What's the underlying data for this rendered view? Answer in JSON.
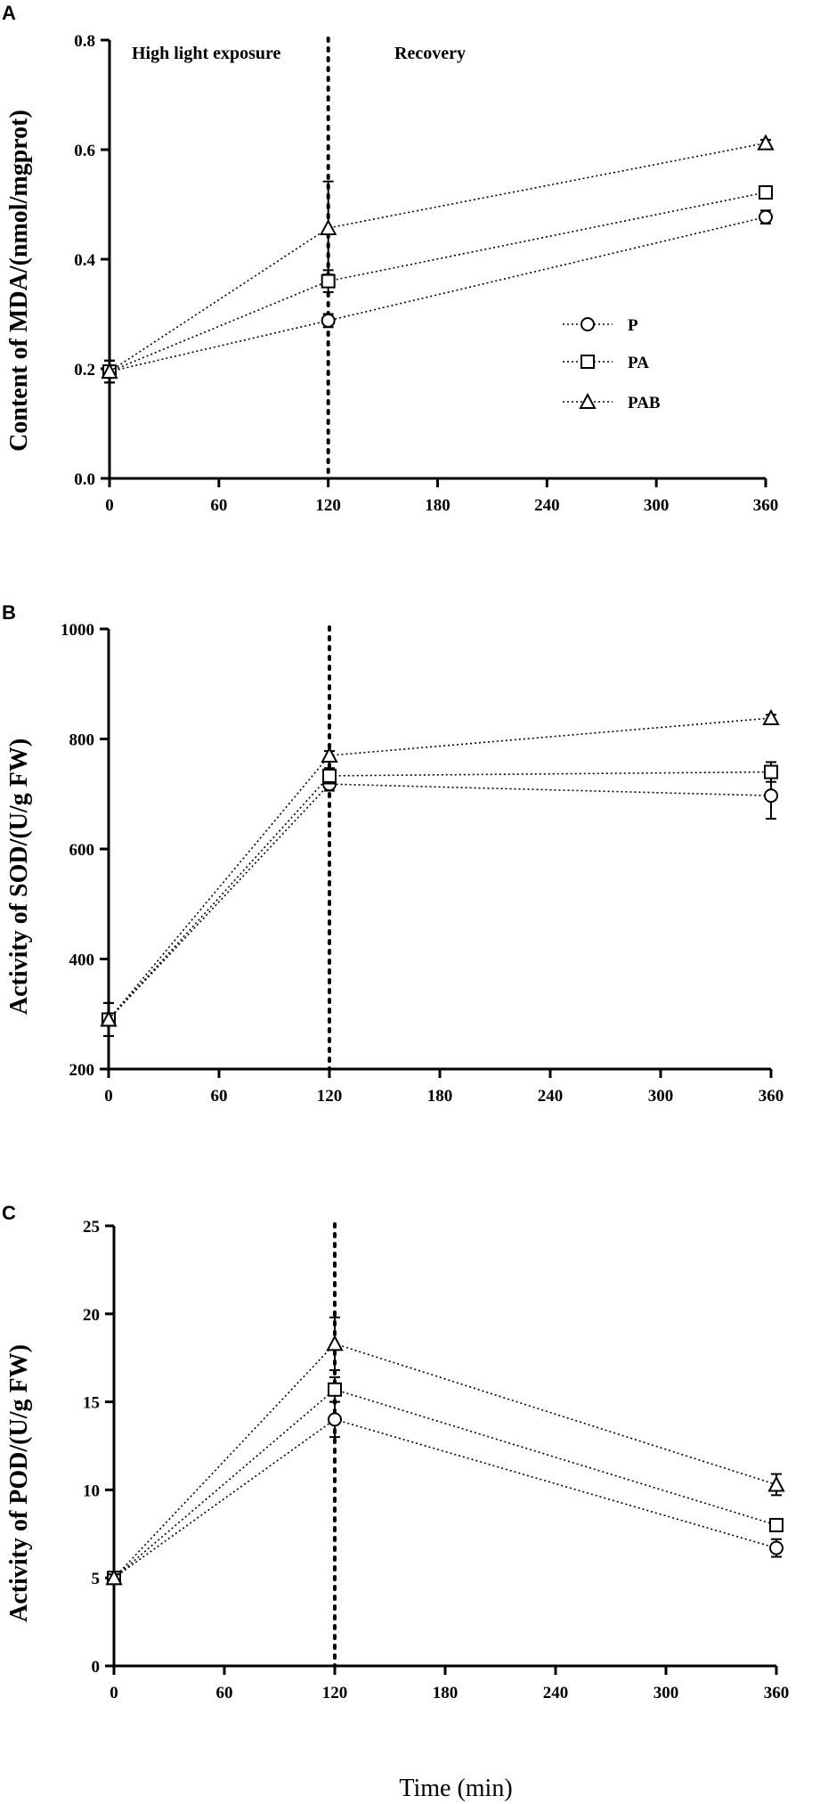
{
  "chart_data": [
    {
      "type": "line",
      "panel": "A",
      "title": "",
      "xlabel": "",
      "ylabel": "Content of MDA/(nmol/mgprot)",
      "x": [
        0,
        120,
        360
      ],
      "xlim": [
        0,
        360
      ],
      "xticks": [
        0,
        60,
        120,
        180,
        240,
        300,
        360
      ],
      "xtick_labels": [
        "0",
        "60",
        "120",
        "180",
        "240",
        "300",
        "360"
      ],
      "ylim": [
        0.0,
        0.8
      ],
      "yticks": [
        0.0,
        0.2,
        0.4,
        0.6,
        0.8
      ],
      "ytick_labels": [
        "0.0",
        "0.2",
        "0.4",
        "0.6",
        "0.8"
      ],
      "vertical_line_x": 120,
      "annotations": [
        "High light exposure",
        "Recovery"
      ],
      "legend_position": "center-right",
      "series": [
        {
          "name": "P",
          "marker": "circle",
          "values": [
            0.195,
            0.288,
            0.477
          ],
          "errors": [
            0.02,
            0.012,
            0.012
          ]
        },
        {
          "name": "PA",
          "marker": "square",
          "values": [
            0.195,
            0.36,
            0.522
          ],
          "errors": [
            0.02,
            0.02,
            0.01
          ]
        },
        {
          "name": "PAB",
          "marker": "triangle",
          "values": [
            0.195,
            0.457,
            0.612
          ],
          "errors": [
            0.02,
            0.085,
            0.006
          ]
        }
      ]
    },
    {
      "type": "line",
      "panel": "B",
      "title": "",
      "xlabel": "",
      "ylabel": "Activity of SOD/(U/g FW)",
      "x": [
        0,
        120,
        360
      ],
      "xlim": [
        0,
        360
      ],
      "xticks": [
        0,
        60,
        120,
        180,
        240,
        300,
        360
      ],
      "xtick_labels": [
        "0",
        "60",
        "120",
        "180",
        "240",
        "300",
        "360"
      ],
      "ylim": [
        200,
        1000
      ],
      "yticks": [
        200,
        400,
        600,
        800,
        1000
      ],
      "ytick_labels": [
        "200",
        "400",
        "600",
        "800",
        "1000"
      ],
      "vertical_line_x": 120,
      "annotations": [],
      "series": [
        {
          "name": "P",
          "marker": "circle",
          "values": [
            290,
            718,
            697
          ],
          "errors": [
            30,
            12,
            42
          ]
        },
        {
          "name": "PA",
          "marker": "square",
          "values": [
            290,
            733,
            740
          ],
          "errors": [
            30,
            14,
            18
          ]
        },
        {
          "name": "PAB",
          "marker": "triangle",
          "values": [
            290,
            770,
            838
          ],
          "errors": [
            30,
            8,
            6
          ]
        }
      ]
    },
    {
      "type": "line",
      "panel": "C",
      "title": "",
      "xlabel": "Time (min)",
      "ylabel": "Activity of POD/(U/g FW)",
      "x": [
        0,
        120,
        360
      ],
      "xlim": [
        0,
        360
      ],
      "xticks": [
        0,
        60,
        120,
        180,
        240,
        300,
        360
      ],
      "xtick_labels": [
        "0",
        "60",
        "120",
        "180",
        "240",
        "300",
        "360"
      ],
      "ylim": [
        0,
        25
      ],
      "yticks": [
        0,
        5,
        10,
        15,
        20,
        25
      ],
      "ytick_labels": [
        "0",
        "5",
        "10",
        "15",
        "20",
        "25"
      ],
      "vertical_line_x": 120,
      "annotations": [],
      "series": [
        {
          "name": "P",
          "marker": "circle",
          "values": [
            5.0,
            14.0,
            6.7
          ],
          "errors": [
            0.2,
            1.0,
            0.5
          ]
        },
        {
          "name": "PA",
          "marker": "square",
          "values": [
            5.0,
            15.7,
            8.0
          ],
          "errors": [
            0.2,
            0.7,
            0.3
          ]
        },
        {
          "name": "PAB",
          "marker": "triangle",
          "values": [
            5.0,
            18.3,
            10.3
          ],
          "errors": [
            0.2,
            1.5,
            0.6
          ]
        }
      ]
    }
  ]
}
